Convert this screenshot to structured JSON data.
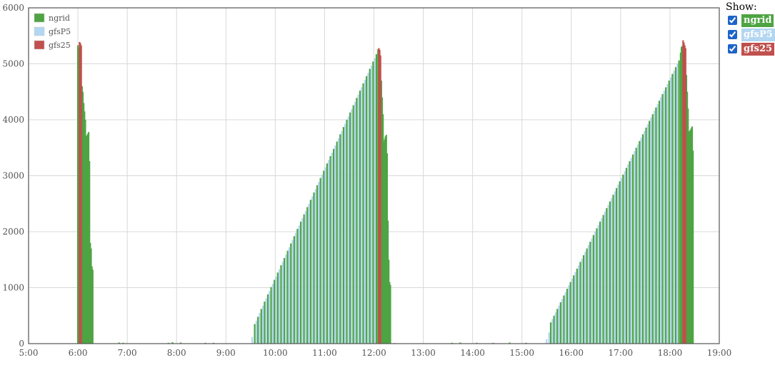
{
  "show_panel": {
    "title": "Show:",
    "items": [
      {
        "label": "ngrid",
        "checked": true,
        "color": "#4ea443"
      },
      {
        "label": "gfsP5",
        "checked": true,
        "color": "#b3d6f1"
      },
      {
        "label": "gfs25",
        "checked": true,
        "color": "#c0504d"
      }
    ]
  },
  "chart_data": {
    "type": "bar",
    "title": "",
    "xlabel": "",
    "ylabel": "",
    "xlim": [
      "5:00",
      "19:00"
    ],
    "ylim": [
      0,
      6000
    ],
    "x_ticks": [
      "5:00",
      "6:00",
      "7:00",
      "8:00",
      "9:00",
      "10:00",
      "11:00",
      "12:00",
      "13:00",
      "14:00",
      "15:00",
      "16:00",
      "17:00",
      "18:00",
      "19:00"
    ],
    "y_ticks": [
      0,
      1000,
      2000,
      3000,
      4000,
      5000,
      6000
    ],
    "grid": true,
    "legend_position": "top-left",
    "colors": {
      "ngrid": "#4ea443",
      "gfsP5": "#b3d6f1",
      "gfs25": "#c0504d"
    },
    "series": [
      {
        "name": "ngrid",
        "color": "#4ea443",
        "bars": [
          {
            "x": "6:00",
            "y": 5330
          },
          {
            "x": "6:01",
            "y": 5280
          },
          {
            "x": "6:05",
            "y": 4600
          },
          {
            "x": "6:06",
            "y": 4500
          },
          {
            "x": "6:07",
            "y": 4300
          },
          {
            "x": "6:08",
            "y": 4150
          },
          {
            "x": "6:09",
            "y": 4000
          },
          {
            "x": "6:10",
            "y": 3700
          },
          {
            "x": "6:11",
            "y": 3720
          },
          {
            "x": "6:12",
            "y": 3750
          },
          {
            "x": "6:13",
            "y": 3780
          },
          {
            "x": "6:14",
            "y": 3260
          },
          {
            "x": "6:15",
            "y": 1800
          },
          {
            "x": "6:16",
            "y": 1700
          },
          {
            "x": "6:17",
            "y": 1380
          },
          {
            "x": "6:18",
            "y": 1320
          },
          {
            "x": "6:50",
            "y": 20
          },
          {
            "x": "6:55",
            "y": 15
          },
          {
            "x": "7:50",
            "y": 15
          },
          {
            "x": "7:55",
            "y": 25
          },
          {
            "x": "8:05",
            "y": 20
          },
          {
            "x": "8:35",
            "y": 15
          },
          {
            "x": "8:45",
            "y": 15
          },
          {
            "x": "9:35",
            "y": 350
          },
          {
            "x": "9:39",
            "y": 480
          },
          {
            "x": "9:43",
            "y": 620
          },
          {
            "x": "9:47",
            "y": 750
          },
          {
            "x": "9:51",
            "y": 880
          },
          {
            "x": "9:55",
            "y": 1010
          },
          {
            "x": "9:59",
            "y": 1140
          },
          {
            "x": "10:03",
            "y": 1270
          },
          {
            "x": "10:07",
            "y": 1400
          },
          {
            "x": "10:11",
            "y": 1530
          },
          {
            "x": "10:15",
            "y": 1660
          },
          {
            "x": "10:19",
            "y": 1790
          },
          {
            "x": "10:23",
            "y": 1920
          },
          {
            "x": "10:27",
            "y": 2050
          },
          {
            "x": "10:31",
            "y": 2180
          },
          {
            "x": "10:35",
            "y": 2310
          },
          {
            "x": "10:39",
            "y": 2440
          },
          {
            "x": "10:43",
            "y": 2570
          },
          {
            "x": "10:47",
            "y": 2700
          },
          {
            "x": "10:51",
            "y": 2830
          },
          {
            "x": "10:55",
            "y": 2960
          },
          {
            "x": "10:59",
            "y": 3090
          },
          {
            "x": "11:03",
            "y": 3220
          },
          {
            "x": "11:07",
            "y": 3350
          },
          {
            "x": "11:11",
            "y": 3480
          },
          {
            "x": "11:15",
            "y": 3610
          },
          {
            "x": "11:19",
            "y": 3740
          },
          {
            "x": "11:23",
            "y": 3870
          },
          {
            "x": "11:27",
            "y": 4000
          },
          {
            "x": "11:31",
            "y": 4130
          },
          {
            "x": "11:35",
            "y": 4260
          },
          {
            "x": "11:39",
            "y": 4390
          },
          {
            "x": "11:43",
            "y": 4520
          },
          {
            "x": "11:47",
            "y": 4650
          },
          {
            "x": "11:51",
            "y": 4780
          },
          {
            "x": "11:55",
            "y": 4910
          },
          {
            "x": "11:59",
            "y": 5040
          },
          {
            "x": "12:03",
            "y": 5170
          },
          {
            "x": "12:05",
            "y": 5260
          },
          {
            "x": "12:09",
            "y": 4700
          },
          {
            "x": "12:10",
            "y": 4400
          },
          {
            "x": "12:11",
            "y": 4100
          },
          {
            "x": "12:12",
            "y": 3600
          },
          {
            "x": "12:13",
            "y": 3650
          },
          {
            "x": "12:14",
            "y": 3700
          },
          {
            "x": "12:15",
            "y": 3730
          },
          {
            "x": "12:16",
            "y": 3400
          },
          {
            "x": "12:17",
            "y": 2200
          },
          {
            "x": "12:18",
            "y": 1500
          },
          {
            "x": "12:19",
            "y": 1100
          },
          {
            "x": "12:20",
            "y": 1050
          },
          {
            "x": "12:25",
            "y": 10
          },
          {
            "x": "13:35",
            "y": 15
          },
          {
            "x": "13:45",
            "y": 20
          },
          {
            "x": "14:05",
            "y": 15
          },
          {
            "x": "14:25",
            "y": 15
          },
          {
            "x": "14:45",
            "y": 20
          },
          {
            "x": "15:05",
            "y": 15
          },
          {
            "x": "15:35",
            "y": 380
          },
          {
            "x": "15:39",
            "y": 500
          },
          {
            "x": "15:43",
            "y": 620
          },
          {
            "x": "15:47",
            "y": 740
          },
          {
            "x": "15:51",
            "y": 860
          },
          {
            "x": "15:55",
            "y": 980
          },
          {
            "x": "15:59",
            "y": 1100
          },
          {
            "x": "16:03",
            "y": 1220
          },
          {
            "x": "16:07",
            "y": 1340
          },
          {
            "x": "16:11",
            "y": 1460
          },
          {
            "x": "16:15",
            "y": 1580
          },
          {
            "x": "16:19",
            "y": 1700
          },
          {
            "x": "16:23",
            "y": 1820
          },
          {
            "x": "16:27",
            "y": 1940
          },
          {
            "x": "16:31",
            "y": 2060
          },
          {
            "x": "16:35",
            "y": 2180
          },
          {
            "x": "16:39",
            "y": 2300
          },
          {
            "x": "16:43",
            "y": 2420
          },
          {
            "x": "16:47",
            "y": 2540
          },
          {
            "x": "16:51",
            "y": 2660
          },
          {
            "x": "16:55",
            "y": 2780
          },
          {
            "x": "16:59",
            "y": 2900
          },
          {
            "x": "17:03",
            "y": 3020
          },
          {
            "x": "17:07",
            "y": 3140
          },
          {
            "x": "17:11",
            "y": 3260
          },
          {
            "x": "17:15",
            "y": 3380
          },
          {
            "x": "17:19",
            "y": 3500
          },
          {
            "x": "17:23",
            "y": 3620
          },
          {
            "x": "17:27",
            "y": 3740
          },
          {
            "x": "17:31",
            "y": 3860
          },
          {
            "x": "17:35",
            "y": 3980
          },
          {
            "x": "17:39",
            "y": 4100
          },
          {
            "x": "17:43",
            "y": 4220
          },
          {
            "x": "17:47",
            "y": 4340
          },
          {
            "x": "17:51",
            "y": 4460
          },
          {
            "x": "17:55",
            "y": 4580
          },
          {
            "x": "17:59",
            "y": 4700
          },
          {
            "x": "18:03",
            "y": 4820
          },
          {
            "x": "18:07",
            "y": 4940
          },
          {
            "x": "18:11",
            "y": 5060
          },
          {
            "x": "18:13",
            "y": 5200
          },
          {
            "x": "18:14",
            "y": 5300
          },
          {
            "x": "18:15",
            "y": 5320
          },
          {
            "x": "18:20",
            "y": 4800
          },
          {
            "x": "18:21",
            "y": 4500
          },
          {
            "x": "18:22",
            "y": 4200
          },
          {
            "x": "18:23",
            "y": 3780
          },
          {
            "x": "18:24",
            "y": 3800
          },
          {
            "x": "18:25",
            "y": 3820
          },
          {
            "x": "18:26",
            "y": 3850
          },
          {
            "x": "18:27",
            "y": 3880
          },
          {
            "x": "18:28",
            "y": 3450
          }
        ]
      },
      {
        "name": "gfsP5",
        "color": "#b3d6f1",
        "bars": [
          {
            "x": "9:32",
            "y": 120
          },
          {
            "x": "9:37",
            "y": 410
          },
          {
            "x": "9:41",
            "y": 550
          },
          {
            "x": "9:45",
            "y": 680
          },
          {
            "x": "9:49",
            "y": 810
          },
          {
            "x": "9:53",
            "y": 940
          },
          {
            "x": "9:57",
            "y": 1070
          },
          {
            "x": "10:01",
            "y": 1200
          },
          {
            "x": "10:05",
            "y": 1330
          },
          {
            "x": "10:09",
            "y": 1460
          },
          {
            "x": "10:13",
            "y": 1590
          },
          {
            "x": "10:17",
            "y": 1720
          },
          {
            "x": "10:21",
            "y": 1850
          },
          {
            "x": "10:25",
            "y": 1980
          },
          {
            "x": "10:29",
            "y": 2110
          },
          {
            "x": "10:33",
            "y": 2240
          },
          {
            "x": "10:37",
            "y": 2370
          },
          {
            "x": "10:41",
            "y": 2500
          },
          {
            "x": "10:45",
            "y": 2630
          },
          {
            "x": "10:49",
            "y": 2760
          },
          {
            "x": "10:53",
            "y": 2890
          },
          {
            "x": "10:57",
            "y": 3020
          },
          {
            "x": "11:01",
            "y": 3150
          },
          {
            "x": "11:05",
            "y": 3280
          },
          {
            "x": "11:09",
            "y": 3410
          },
          {
            "x": "11:13",
            "y": 3540
          },
          {
            "x": "11:17",
            "y": 3670
          },
          {
            "x": "11:21",
            "y": 3800
          },
          {
            "x": "11:25",
            "y": 3930
          },
          {
            "x": "11:29",
            "y": 4060
          },
          {
            "x": "11:33",
            "y": 4190
          },
          {
            "x": "11:37",
            "y": 4320
          },
          {
            "x": "11:41",
            "y": 4450
          },
          {
            "x": "11:45",
            "y": 4580
          },
          {
            "x": "11:49",
            "y": 4710
          },
          {
            "x": "11:53",
            "y": 4840
          },
          {
            "x": "11:57",
            "y": 4970
          },
          {
            "x": "12:01",
            "y": 5100
          },
          {
            "x": "15:30",
            "y": 80
          },
          {
            "x": "15:33",
            "y": 200
          },
          {
            "x": "15:37",
            "y": 440
          },
          {
            "x": "15:41",
            "y": 560
          },
          {
            "x": "15:45",
            "y": 680
          },
          {
            "x": "15:49",
            "y": 800
          },
          {
            "x": "15:53",
            "y": 920
          },
          {
            "x": "15:57",
            "y": 1040
          },
          {
            "x": "16:01",
            "y": 1160
          },
          {
            "x": "16:05",
            "y": 1280
          },
          {
            "x": "16:09",
            "y": 1400
          },
          {
            "x": "16:13",
            "y": 1520
          },
          {
            "x": "16:17",
            "y": 1640
          },
          {
            "x": "16:21",
            "y": 1760
          },
          {
            "x": "16:25",
            "y": 1880
          },
          {
            "x": "16:29",
            "y": 2000
          },
          {
            "x": "16:33",
            "y": 2120
          },
          {
            "x": "16:37",
            "y": 2240
          },
          {
            "x": "16:41",
            "y": 2360
          },
          {
            "x": "16:45",
            "y": 2480
          },
          {
            "x": "16:49",
            "y": 2600
          },
          {
            "x": "16:53",
            "y": 2720
          },
          {
            "x": "16:57",
            "y": 2840
          },
          {
            "x": "17:01",
            "y": 2960
          },
          {
            "x": "17:05",
            "y": 3080
          },
          {
            "x": "17:09",
            "y": 3200
          },
          {
            "x": "17:13",
            "y": 3320
          },
          {
            "x": "17:17",
            "y": 3440
          },
          {
            "x": "17:21",
            "y": 3560
          },
          {
            "x": "17:25",
            "y": 3680
          },
          {
            "x": "17:29",
            "y": 3800
          },
          {
            "x": "17:33",
            "y": 3920
          },
          {
            "x": "17:37",
            "y": 4040
          },
          {
            "x": "17:41",
            "y": 4160
          },
          {
            "x": "17:45",
            "y": 4280
          },
          {
            "x": "17:49",
            "y": 4400
          },
          {
            "x": "17:53",
            "y": 4520
          },
          {
            "x": "17:57",
            "y": 4640
          },
          {
            "x": "18:01",
            "y": 4760
          },
          {
            "x": "18:05",
            "y": 4880
          },
          {
            "x": "18:09",
            "y": 5000
          }
        ]
      },
      {
        "name": "gfs25",
        "color": "#c0504d",
        "bars": [
          {
            "x": "6:02",
            "y": 5390
          },
          {
            "x": "6:03",
            "y": 5370
          },
          {
            "x": "6:04",
            "y": 5330
          },
          {
            "x": "12:06",
            "y": 5280
          },
          {
            "x": "12:07",
            "y": 5250
          },
          {
            "x": "12:08",
            "y": 5150
          },
          {
            "x": "18:16",
            "y": 5420
          },
          {
            "x": "18:17",
            "y": 5380
          },
          {
            "x": "18:18",
            "y": 5330
          },
          {
            "x": "18:19",
            "y": 5280
          }
        ]
      }
    ]
  }
}
